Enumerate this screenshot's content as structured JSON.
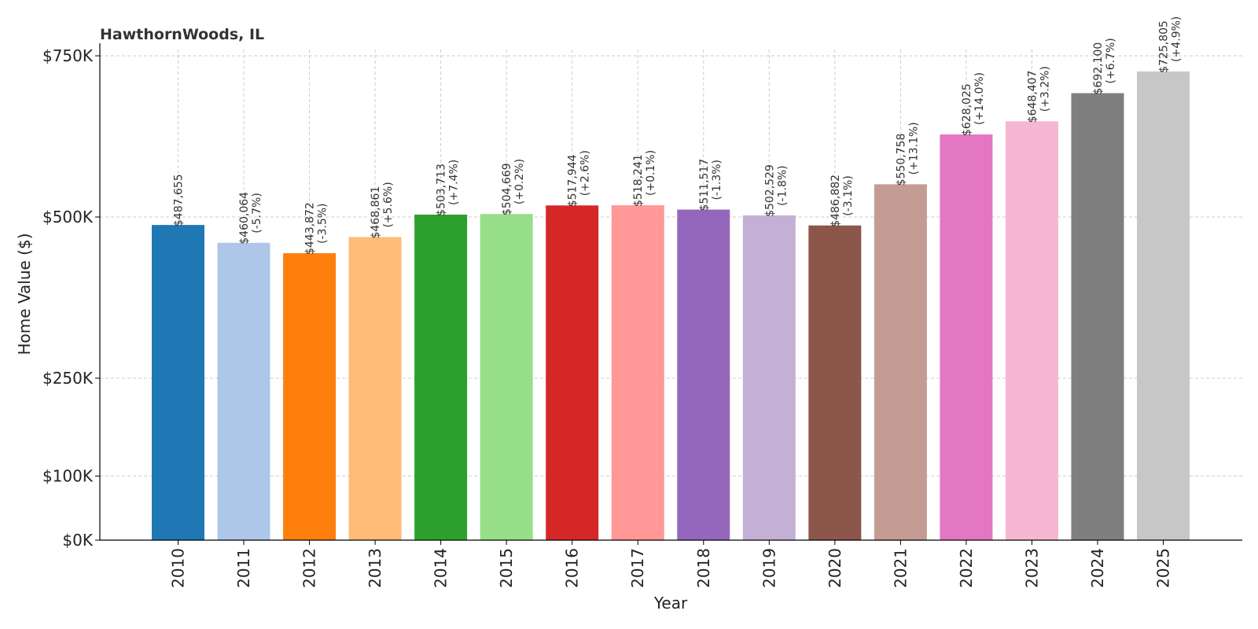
{
  "chart_data": {
    "type": "bar",
    "title": "HawthornWoods, IL",
    "xlabel": "Year",
    "ylabel": "Home Value ($)",
    "categories": [
      "2010",
      "2011",
      "2012",
      "2013",
      "2014",
      "2015",
      "2016",
      "2017",
      "2018",
      "2019",
      "2020",
      "2021",
      "2022",
      "2023",
      "2024",
      "2025"
    ],
    "values": [
      487655,
      460064,
      443872,
      468861,
      503713,
      504669,
      517944,
      518241,
      511517,
      502529,
      486882,
      550758,
      628025,
      648407,
      692100,
      725805
    ],
    "value_labels": [
      "$487,655",
      "$460,064",
      "$443,872",
      "$468,861",
      "$503,713",
      "$504,669",
      "$517,944",
      "$518,241",
      "$511,517",
      "$502,529",
      "$486,882",
      "$550,758",
      "$628,025",
      "$648,407",
      "$692,100",
      "$725,805"
    ],
    "change_labels": [
      "",
      "(-5.7%)",
      "(-3.5%)",
      "(+5.6%)",
      "(+7.4%)",
      "(+0.2%)",
      "(+2.6%)",
      "(+0.1%)",
      "(-1.3%)",
      "(-1.8%)",
      "(-3.1%)",
      "(+13.1%)",
      "(+14.0%)",
      "(+3.2%)",
      "(+6.7%)",
      "(+4.9%)"
    ],
    "colors": [
      "#1f77b4",
      "#aec7e8",
      "#ff7f0e",
      "#ffbb78",
      "#2ca02c",
      "#98df8a",
      "#d62728",
      "#ff9896",
      "#9467bd",
      "#c5b0d5",
      "#8c564b",
      "#c49c94",
      "#e377c2",
      "#f7b6d2",
      "#7f7f7f",
      "#c7c7c7"
    ],
    "y_ticks": [
      0,
      100000,
      250000,
      500000,
      750000
    ],
    "y_tick_labels": [
      "$0K",
      "$100K",
      "$250K",
      "$500K",
      "$750K"
    ],
    "ylim": [
      0,
      750000
    ],
    "grid": true
  }
}
